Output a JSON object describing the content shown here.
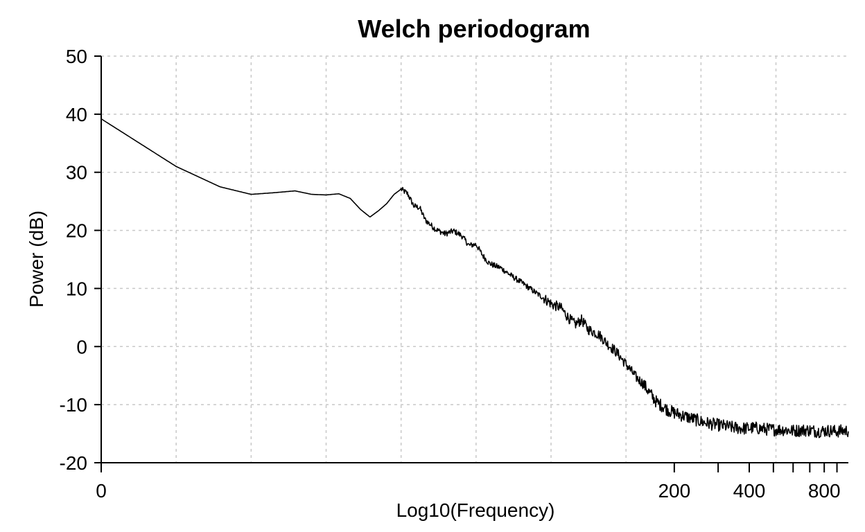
{
  "chart_data": {
    "type": "line",
    "title": "Welch periodogram",
    "xlabel": "Log10(Frequency)",
    "ylabel": "Power (dB)",
    "xscale": "log",
    "xlim": [
      1,
      1000
    ],
    "ylim": [
      -20,
      50
    ],
    "grid": true,
    "yticks": [
      50,
      40,
      30,
      20,
      10,
      0,
      -10,
      -20
    ],
    "ytick_labels": [
      "50",
      "40",
      "30",
      "20",
      "10",
      "0",
      "-10",
      "-20"
    ],
    "xticks_labeled": [
      {
        "value": 1,
        "label": "0"
      },
      {
        "value": 200,
        "label": "200"
      },
      {
        "value": 400,
        "label": "400"
      },
      {
        "value": 800,
        "label": "800"
      }
    ],
    "x_gridlines": [
      2,
      4,
      8,
      16,
      32,
      64,
      128,
      256,
      512
    ],
    "x_minor_ticks": [
      300,
      500,
      600,
      700,
      900
    ],
    "series": [
      {
        "color": "#000000",
        "x": [
          1,
          2,
          3,
          4,
          5,
          6,
          7,
          8,
          9,
          10,
          11,
          12,
          13,
          14,
          15,
          16,
          17,
          18,
          19,
          20,
          22,
          24,
          26,
          28,
          30,
          32,
          34,
          36,
          38,
          40,
          45,
          50,
          55,
          60,
          65,
          70,
          75,
          80,
          85,
          90,
          95,
          100,
          105,
          110,
          115,
          120,
          125,
          130,
          140,
          150,
          160,
          170,
          180,
          190,
          200,
          220,
          240,
          260,
          280,
          300,
          340,
          380,
          420,
          460,
          500,
          550,
          600,
          650,
          700,
          750,
          800,
          850,
          900,
          950,
          1000
        ],
        "y": [
          39.2,
          31.0,
          27.5,
          26.2,
          26.5,
          26.8,
          26.2,
          26.1,
          26.3,
          25.5,
          23.6,
          22.3,
          23.4,
          24.6,
          26.2,
          27.1,
          26.3,
          24.2,
          23.9,
          21.8,
          20.2,
          19.4,
          19.9,
          19.1,
          17.4,
          17.6,
          15.7,
          14.4,
          13.9,
          13.6,
          12.0,
          10.7,
          9.4,
          8.3,
          7.2,
          6.7,
          5.0,
          3.8,
          4.6,
          3.0,
          2.5,
          2.0,
          1.0,
          0.1,
          -0.6,
          -1.5,
          -2.5,
          -3.4,
          -5.2,
          -6.4,
          -8.1,
          -9.6,
          -10.3,
          -11.0,
          -11.4,
          -12.0,
          -12.5,
          -13.0,
          -13.3,
          -13.5,
          -13.9,
          -14.1,
          -14.0,
          -14.2,
          -14.3,
          -14.3,
          -14.5,
          -14.4,
          -14.4,
          -14.6,
          -14.5,
          -14.5,
          -14.6,
          -14.5,
          -14.5
        ]
      }
    ]
  }
}
